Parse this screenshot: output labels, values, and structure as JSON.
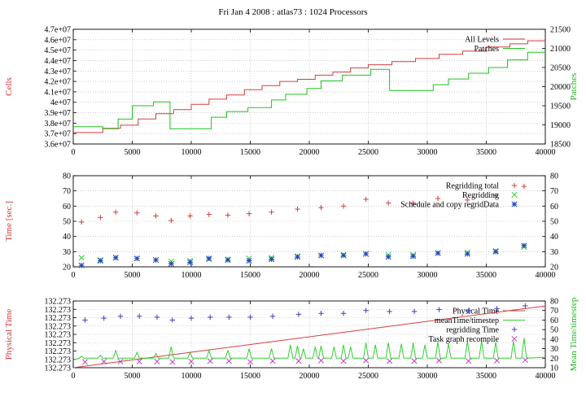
{
  "title": "Fri Jan 4 2008 : atlas73 : 1024 Processors",
  "chart_data": [
    {
      "type": "line",
      "ylabel": "Cells",
      "y2label": "Patches",
      "xlim": [
        0,
        40000
      ],
      "ylim": [
        36000000,
        47000000
      ],
      "y2lim": [
        18500,
        21500
      ],
      "xticks": [
        "0",
        "5000",
        "10000",
        "15000",
        "20000",
        "25000",
        "30000",
        "35000",
        "40000"
      ],
      "yticks": [
        "3.6e+07",
        "3.7e+07",
        "3.8e+07",
        "3.9e+07",
        "4e+07",
        "4.1e+07",
        "4.2e+07",
        "4.3e+07",
        "4.4e+07",
        "4.5e+07",
        "4.6e+07",
        "4.7e+07"
      ],
      "y2ticks": [
        "18500",
        "19000",
        "19500",
        "20000",
        "20500",
        "21000",
        "21500"
      ],
      "grid": true,
      "legend_position": "top-right",
      "series": [
        {
          "name": "All Levels",
          "axis": "left",
          "color": "#d04040",
          "style": "step",
          "x": [
            0,
            2500,
            4000,
            5500,
            7000,
            8500,
            10000,
            11500,
            13000,
            14500,
            16000,
            17500,
            19000,
            20500,
            22000,
            23500,
            25000,
            27000,
            29000,
            31000,
            33000,
            35000,
            37000,
            38500
          ],
          "values": [
            37100000,
            37500000,
            37800000,
            38400000,
            38900000,
            39300000,
            39800000,
            40300000,
            40700000,
            41200000,
            41600000,
            42000000,
            42200000,
            42600000,
            42900000,
            43300000,
            43600000,
            43900000,
            44200000,
            44600000,
            44900000,
            45300000,
            45600000,
            45900000
          ]
        },
        {
          "name": "Patches",
          "axis": "right",
          "color": "#20c020",
          "style": "step",
          "x": [
            0,
            2500,
            3800,
            5000,
            6800,
            8200,
            10300,
            11700,
            13000,
            14800,
            16800,
            18000,
            19800,
            21000,
            22800,
            25200,
            26800,
            29000,
            30500,
            31800,
            33500,
            35200,
            36800,
            38500
          ],
          "values": [
            18950,
            18900,
            19150,
            19500,
            19600,
            18900,
            18900,
            19200,
            19350,
            19450,
            19650,
            19800,
            19950,
            20150,
            20300,
            20450,
            19900,
            19900,
            20050,
            20200,
            20350,
            20500,
            20700,
            20900
          ]
        }
      ]
    },
    {
      "type": "scatter",
      "ylabel": "Time [sec.]",
      "xlim": [
        0,
        40000
      ],
      "ylim": [
        20,
        80
      ],
      "xticks": [
        "0",
        "5000",
        "10000",
        "15000",
        "20000",
        "25000",
        "30000",
        "35000",
        "40000"
      ],
      "yticks": [
        "20",
        "30",
        "40",
        "50",
        "60",
        "70",
        "80"
      ],
      "y2ticks": [
        "20",
        "30",
        "40",
        "50",
        "60",
        "70",
        "80"
      ],
      "grid": true,
      "legend_position": "top-right",
      "series": [
        {
          "name": "Regridding total",
          "marker": "plus",
          "color": "#d04040",
          "x": [
            700,
            2300,
            3600,
            5400,
            7000,
            8300,
            9900,
            11500,
            13100,
            14900,
            16800,
            19000,
            21000,
            22900,
            24800,
            26700,
            28800,
            30900,
            33400,
            35800,
            38200
          ],
          "values": [
            49.5,
            52.5,
            56,
            55.5,
            53.5,
            50.5,
            53.5,
            54.5,
            54,
            55,
            56,
            58,
            59,
            60,
            64.5,
            62,
            62,
            65,
            64,
            67,
            73
          ]
        },
        {
          "name": "Regridding",
          "marker": "x",
          "color": "#30d030",
          "x": [
            700,
            2300,
            3600,
            5400,
            7000,
            8300,
            9900,
            11500,
            13100,
            14900,
            16800,
            19000,
            21000,
            22900,
            24800,
            26700,
            28800,
            30900,
            33400,
            35800,
            38200
          ],
          "values": [
            26,
            24.5,
            26,
            25.5,
            24.5,
            23.5,
            24,
            25,
            25,
            25.5,
            26,
            27,
            27.5,
            28,
            28.5,
            28,
            28,
            29,
            29.5,
            30.5,
            33
          ]
        },
        {
          "name": "Schedule and copy regridData",
          "marker": "star",
          "color": "#2040c0",
          "x": [
            700,
            2300,
            3600,
            5400,
            7000,
            8300,
            9900,
            11500,
            13100,
            14900,
            16800,
            19000,
            21000,
            22900,
            24800,
            26700,
            28800,
            30900,
            33400,
            35800,
            38200
          ],
          "values": [
            21,
            24,
            26,
            25.5,
            24.5,
            22,
            23,
            25.5,
            24.5,
            24,
            25,
            26.5,
            27.5,
            27.5,
            28.5,
            26.5,
            27,
            29,
            28.5,
            30,
            34
          ]
        }
      ]
    },
    {
      "type": "line",
      "ylabel": "Physical Time",
      "y2label": "Mean Time/timestep",
      "xlim": [
        0,
        40000
      ],
      "ylim": [
        0,
        8
      ],
      "y2lim": [
        10,
        80
      ],
      "xticks": [
        "0",
        "5000",
        "10000",
        "15000",
        "20000",
        "25000",
        "30000",
        "35000",
        "40000"
      ],
      "yticks": [
        "132.273",
        "132.273",
        "132.273",
        "132.273",
        "132.273",
        "132.273",
        "132.273",
        "132.273",
        "132.273"
      ],
      "y2ticks": [
        "10",
        "20",
        "30",
        "40",
        "50",
        "60",
        "70",
        "80"
      ],
      "grid": true,
      "legend_position": "top-right",
      "series": [
        {
          "name": "Physical Time",
          "axis": "left",
          "color": "#d04040",
          "style": "line",
          "x": [
            0,
            40000
          ],
          "values": [
            0,
            7.4
          ]
        },
        {
          "name": "meanTime/timestep",
          "axis": "right",
          "color": "#30d030",
          "style": "spiky",
          "spike_x": [
            700,
            2300,
            3600,
            5400,
            7000,
            8300,
            9900,
            11500,
            13100,
            14900,
            16800,
            18400,
            19000,
            19500,
            20500,
            21000,
            22100,
            22900,
            23500,
            24800,
            25600,
            26700,
            27800,
            28800,
            29800,
            30900,
            31800,
            33400,
            34600,
            35800,
            37300,
            38200
          ],
          "spike_values": [
            22,
            23,
            28,
            26,
            25,
            32,
            26,
            28,
            28,
            30,
            30,
            34,
            33,
            30,
            32,
            33,
            32,
            34,
            32,
            36,
            34,
            36,
            35,
            36,
            34,
            37,
            35,
            38,
            38,
            37,
            38,
            41
          ],
          "baseline": 20
        },
        {
          "name": "regridding Time",
          "axis": "right",
          "marker": "plus",
          "color": "#4040c0",
          "x": [
            1000,
            2600,
            4000,
            5600,
            7100,
            8400,
            10000,
            11600,
            13200,
            15000,
            16900,
            19100,
            21000,
            22900,
            24800,
            26800,
            28900,
            31000,
            33500,
            35900,
            38300
          ],
          "values": [
            60,
            62,
            64,
            64,
            63,
            60,
            62,
            63,
            63,
            63,
            64,
            66,
            67,
            67,
            70,
            69,
            69,
            71,
            70,
            72,
            75
          ]
        },
        {
          "name": "Task graph recompile",
          "axis": "right",
          "marker": "x",
          "color": "#c040c0",
          "x": [
            1000,
            2600,
            4000,
            5600,
            7100,
            8400,
            10000,
            11600,
            13200,
            15000,
            16900,
            19100,
            21000,
            22900,
            24800,
            26800,
            28900,
            31000,
            33500,
            35900,
            38300
          ],
          "values": [
            16,
            16.5,
            16.5,
            16.5,
            16.5,
            16,
            16.5,
            17,
            17,
            16,
            17,
            17,
            17.5,
            17,
            17.5,
            17,
            17,
            17.5,
            17,
            17.5,
            18
          ]
        }
      ]
    }
  ]
}
